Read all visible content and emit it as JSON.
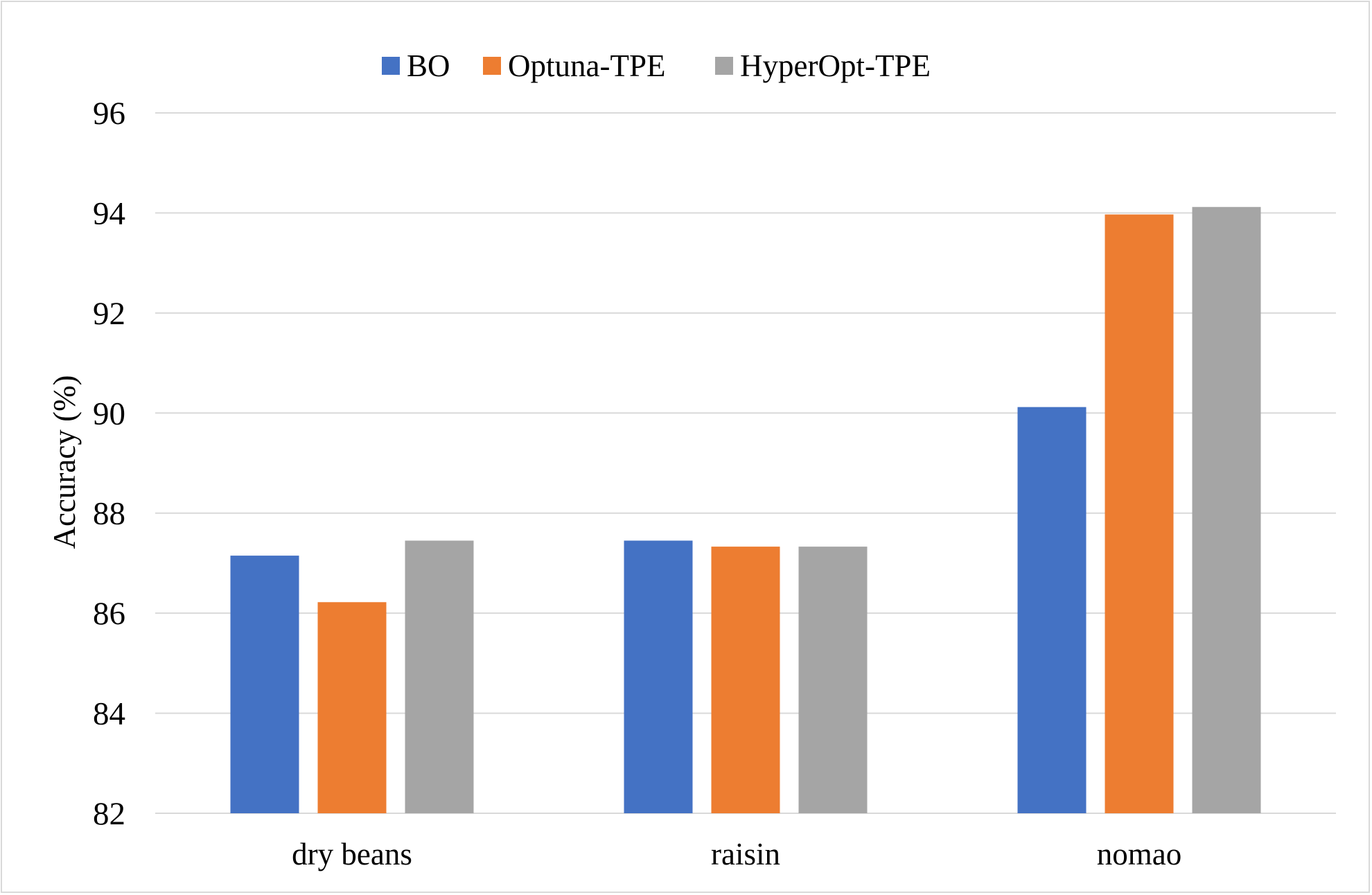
{
  "chart_data": {
    "type": "bar",
    "categories": [
      "dry beans",
      "raisin",
      "nomao"
    ],
    "series": [
      {
        "name": "BO",
        "color": "#4472c4",
        "values": [
          87.15,
          87.45,
          90.12
        ]
      },
      {
        "name": "Optuna-TPE",
        "color": "#ed7d31",
        "values": [
          86.22,
          87.33,
          93.97
        ]
      },
      {
        "name": "HyperOpt-TPE",
        "color": "#a5a5a5",
        "values": [
          87.45,
          87.33,
          94.12
        ]
      }
    ],
    "ylabel": "Accuracy (%)",
    "ylim": [
      82,
      96
    ],
    "yticks": [
      82,
      84,
      86,
      88,
      90,
      92,
      94,
      96
    ],
    "grid": true,
    "legend_position": "top"
  }
}
